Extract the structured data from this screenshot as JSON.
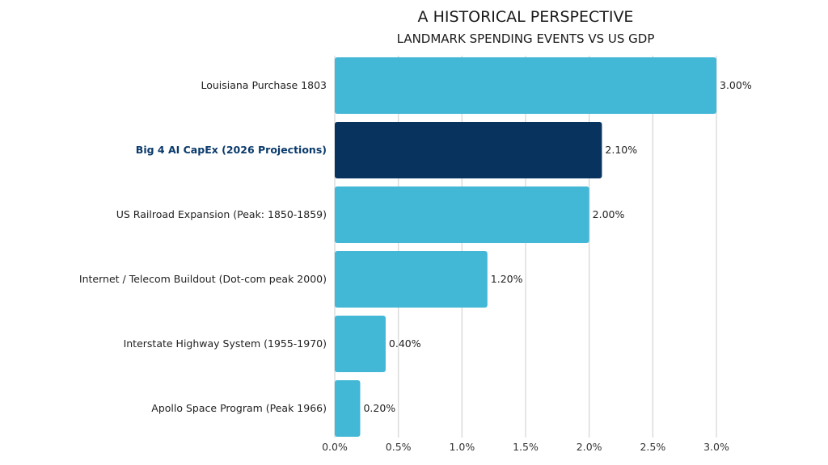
{
  "chart_data": {
    "type": "bar",
    "orientation": "horizontal",
    "title": "A HISTORICAL PERSPECTIVE",
    "subtitle": "LANDMARK SPENDING EVENTS VS US GDP",
    "categories": [
      "Louisiana Purchase 1803",
      "Big 4 AI CapEx (2026 Projections)",
      "US Railroad Expansion (Peak: 1850-1859)",
      "Internet / Telecom Buildout (Dot-com peak 2000)",
      "Interstate Highway System (1955-1970)",
      "Apollo Space Program (Peak 1966)"
    ],
    "values": [
      3.0,
      2.1,
      2.0,
      1.2,
      0.4,
      0.2
    ],
    "data_labels": [
      "3.00%",
      "2.10%",
      "2.00%",
      "1.20%",
      "0.40%",
      "0.20%"
    ],
    "highlighted_index": 1,
    "xlim": [
      0,
      3.0
    ],
    "x_ticks": [
      0,
      0.5,
      1.0,
      1.5,
      2.0,
      2.5,
      3.0
    ],
    "x_tick_labels": [
      "0.0%",
      "0.5%",
      "1.0%",
      "1.5%",
      "2.0%",
      "2.5%",
      "3.0%"
    ],
    "xlabel": "",
    "ylabel": "",
    "grid": "vertical",
    "legend": "none",
    "colors": {
      "bar": "#42b7d6",
      "highlight": "#08335f",
      "highlight_label": "#0a3a6b",
      "grid": "#dddddd"
    }
  }
}
